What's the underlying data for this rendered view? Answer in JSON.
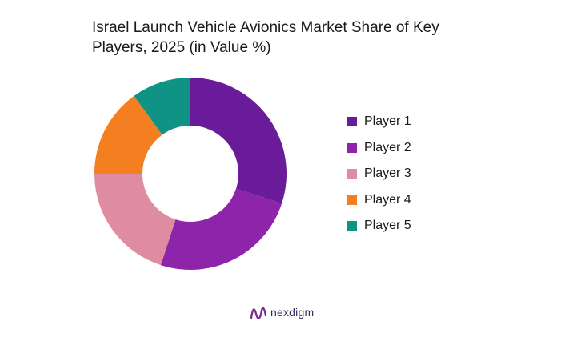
{
  "chart_data": {
    "type": "pie",
    "title": "Israel Launch Vehicle Avionics Market Share of Key Players, 2025 (in Value %)",
    "donut": true,
    "categories": [
      "Player 1",
      "Player 2",
      "Player 3",
      "Player 4",
      "Player 5"
    ],
    "values": [
      30,
      25,
      20,
      15,
      10
    ],
    "colors": [
      "#6a1b9a",
      "#8e24aa",
      "#e08ca0",
      "#f47f20",
      "#0e9384"
    ],
    "legend_position": "right"
  },
  "brand": {
    "name": "nexdigm",
    "logo": "nexdigm-logo"
  }
}
